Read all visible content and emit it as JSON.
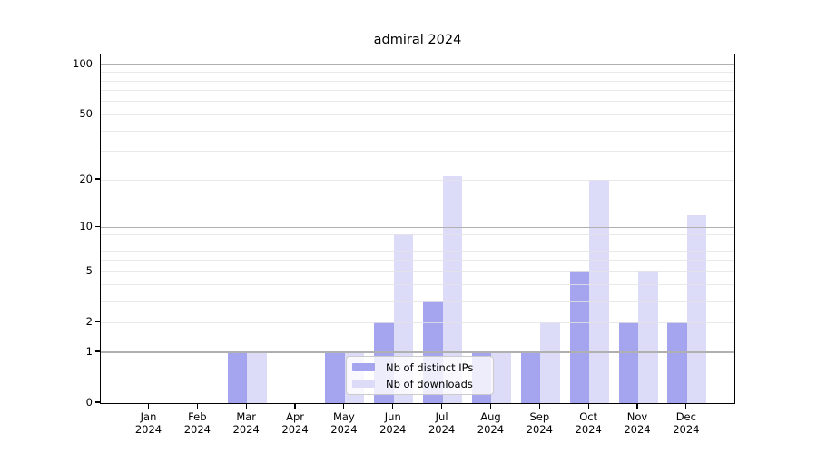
{
  "title": "admiral 2024",
  "chart_data": {
    "type": "bar",
    "title": "admiral 2024",
    "xlabel": "",
    "ylabel": "",
    "yscale": "log1p",
    "ylim": [
      0,
      115
    ],
    "grid": true,
    "legend_position": "lower center",
    "categories": [
      "Jan 2024",
      "Feb 2024",
      "Mar 2024",
      "Apr 2024",
      "May 2024",
      "Jun 2024",
      "Jul 2024",
      "Aug 2024",
      "Sep 2024",
      "Oct 2024",
      "Nov 2024",
      "Dec 2024"
    ],
    "series": [
      {
        "name": "Nb of distinct IPs",
        "color": "#a5a5ef",
        "values": [
          0,
          0,
          1,
          0,
          1,
          2,
          3,
          1,
          1,
          5,
          2,
          2
        ]
      },
      {
        "name": "Nb of downloads",
        "color": "#dcdcf8",
        "values": [
          0,
          0,
          1,
          0,
          1,
          9,
          21,
          1,
          2,
          20,
          5,
          12
        ]
      }
    ]
  },
  "y_axis": {
    "ticks": [
      {
        "value": 100,
        "label": "100"
      },
      {
        "value": 50,
        "label": "50"
      },
      {
        "value": 20,
        "label": "20"
      },
      {
        "value": 10,
        "label": "10"
      },
      {
        "value": 5,
        "label": "5"
      },
      {
        "value": 2,
        "label": "2"
      },
      {
        "value": 1,
        "label": "1"
      },
      {
        "value": 0,
        "label": "0"
      }
    ],
    "major_gridlines": [
      1,
      10,
      100
    ],
    "minor_gridlines": [
      2,
      3,
      4,
      5,
      6,
      7,
      8,
      9,
      20,
      30,
      40,
      50,
      60,
      70,
      80,
      90
    ]
  },
  "x_axis": {
    "labels": [
      {
        "line1": "Jan",
        "line2": "2024"
      },
      {
        "line1": "Feb",
        "line2": "2024"
      },
      {
        "line1": "Mar",
        "line2": "2024"
      },
      {
        "line1": "Apr",
        "line2": "2024"
      },
      {
        "line1": "May",
        "line2": "2024"
      },
      {
        "line1": "Jun",
        "line2": "2024"
      },
      {
        "line1": "Jul",
        "line2": "2024"
      },
      {
        "line1": "Aug",
        "line2": "2024"
      },
      {
        "line1": "Sep",
        "line2": "2024"
      },
      {
        "line1": "Oct",
        "line2": "2024"
      },
      {
        "line1": "Nov",
        "line2": "2024"
      },
      {
        "line1": "Dec",
        "line2": "2024"
      }
    ]
  },
  "legend": {
    "items": [
      {
        "label": "Nb of distinct IPs",
        "color": "#a5a5ef"
      },
      {
        "label": "Nb of downloads",
        "color": "#dcdcf8"
      }
    ]
  },
  "colors": {
    "ips_bar": "#a5a5ef",
    "downloads_bar": "#dcdcf8",
    "major_gridline": "#b0b0b0",
    "minor_gridline": "#e4e4e4",
    "axis_spine": "#000000",
    "background": "#ffffff",
    "legend_border": "#cccccc"
  }
}
